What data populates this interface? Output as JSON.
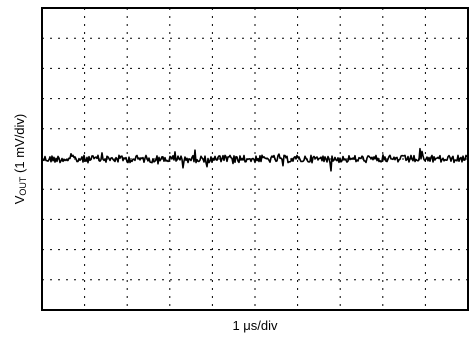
{
  "chart_data": {
    "type": "line",
    "title": "",
    "xlabel": "1 μs/div",
    "ylabel": {
      "main": "V",
      "subscript": "OUT",
      "rest": " (1 mV/div)"
    },
    "x_divisions": 10,
    "y_divisions": 10,
    "grid": true,
    "grid_style": "dashed",
    "series": [
      {
        "trace_level_div": 5.0,
        "noise_pp_div": 0.35,
        "color": "#000000"
      }
    ]
  }
}
